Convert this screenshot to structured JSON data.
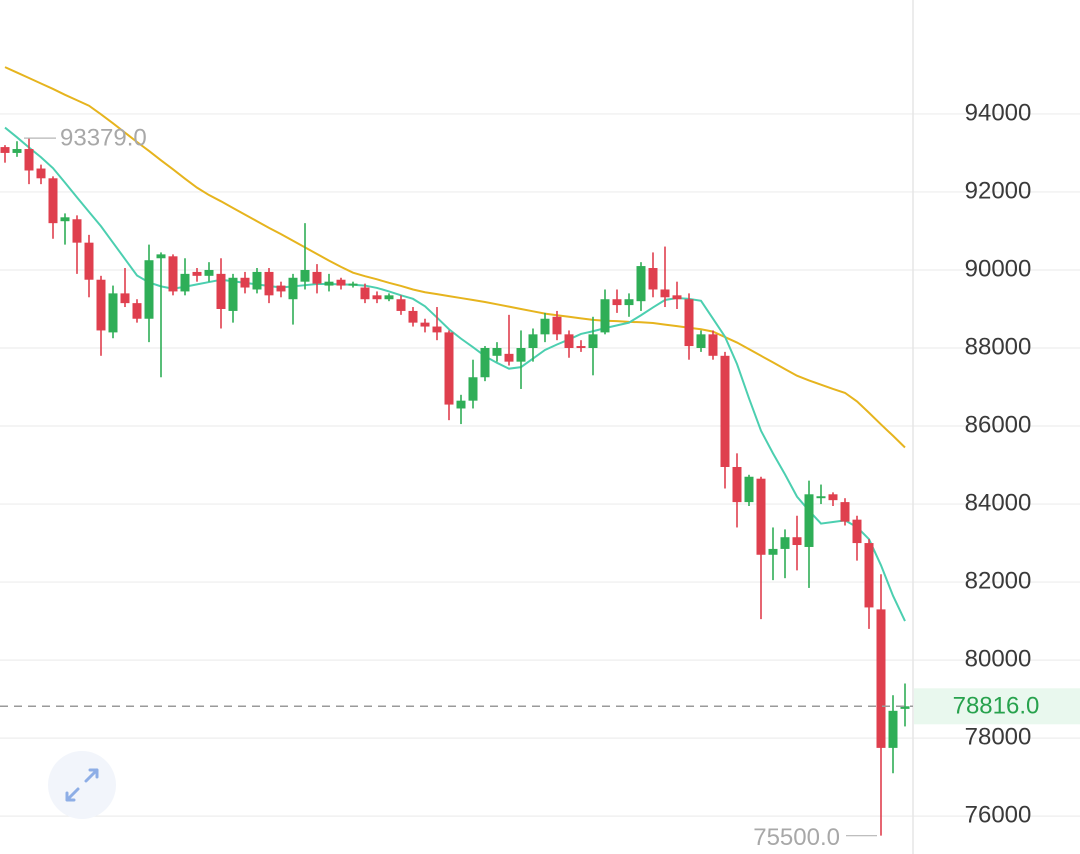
{
  "chart_data": {
    "type": "candlestick",
    "ylim": [
      75030,
      96920
    ],
    "yticks": [
      76000,
      78000,
      80000,
      82000,
      84000,
      86000,
      88000,
      90000,
      92000,
      94000
    ],
    "grid": true,
    "up_color": "#2fae57",
    "down_color": "#df3f4e",
    "candles": {
      "open": [
        93150,
        93000,
        93100,
        92600,
        92350,
        91250,
        91300,
        90700,
        89750,
        88400,
        89400,
        89150,
        88750,
        90300,
        90350,
        89450,
        89950,
        89850,
        89900,
        88950,
        89800,
        89500,
        89950,
        89600,
        89250,
        89700,
        89950,
        89600,
        89750,
        89600,
        89550,
        89350,
        89250,
        89250,
        88950,
        88650,
        88550,
        88400,
        86450,
        86650,
        87250,
        87800,
        87850,
        87650,
        88000,
        88350,
        88800,
        88350,
        88050,
        88000,
        88400,
        89250,
        89100,
        89200,
        90050,
        89500,
        89350,
        89250,
        88000,
        88350,
        87800,
        84950,
        84050,
        84650,
        82700,
        82850,
        83150,
        82900,
        84150,
        84250,
        84050,
        83600,
        83000,
        81300,
        77750,
        78750
      ],
      "high": [
        93200,
        93300,
        93379,
        92700,
        92400,
        91450,
        91400,
        90900,
        89850,
        89600,
        90050,
        89250,
        90650,
        90450,
        90400,
        90300,
        90050,
        90200,
        90300,
        89900,
        89950,
        90050,
        90050,
        89700,
        89900,
        91200,
        90150,
        89900,
        89800,
        89700,
        89650,
        89450,
        89400,
        89350,
        89050,
        88750,
        89050,
        88450,
        86800,
        87700,
        88050,
        88150,
        88850,
        88450,
        88500,
        88900,
        88950,
        88450,
        88200,
        88800,
        89500,
        89500,
        89400,
        90200,
        90450,
        90600,
        89700,
        89400,
        88450,
        88450,
        87900,
        85300,
        84750,
        84700,
        83400,
        83350,
        83700,
        84600,
        84500,
        84300,
        84150,
        83700,
        83100,
        82200,
        79100,
        79400
      ],
      "low": [
        92750,
        92900,
        92200,
        92200,
        90800,
        90650,
        89900,
        89300,
        87800,
        88250,
        89050,
        88650,
        88150,
        87250,
        89350,
        89350,
        89700,
        89700,
        88500,
        88650,
        89400,
        89400,
        89150,
        89300,
        88600,
        89500,
        89400,
        89450,
        89500,
        89550,
        89150,
        89150,
        89200,
        88850,
        88550,
        88400,
        88200,
        86150,
        86050,
        86450,
        87150,
        87650,
        87550,
        86950,
        87650,
        88150,
        88200,
        87750,
        87900,
        87300,
        88350,
        88900,
        88800,
        88950,
        89300,
        89050,
        89000,
        87700,
        87900,
        87700,
        84400,
        83400,
        83950,
        81050,
        82050,
        82100,
        82300,
        81850,
        84000,
        83950,
        83450,
        82550,
        80800,
        75500,
        77100,
        78300
      ],
      "close": [
        93000,
        93100,
        92550,
        92350,
        91200,
        91350,
        90700,
        89750,
        88450,
        89400,
        89150,
        88750,
        90250,
        90400,
        89450,
        89900,
        89850,
        90000,
        89000,
        89800,
        89550,
        89950,
        89350,
        89450,
        89800,
        90000,
        89650,
        89700,
        89600,
        89650,
        89250,
        89250,
        89350,
        88950,
        88650,
        88550,
        88400,
        86550,
        86650,
        87250,
        88000,
        88000,
        87650,
        88000,
        88350,
        88750,
        88350,
        88000,
        88000,
        88350,
        89250,
        89100,
        89250,
        90100,
        89500,
        89300,
        89250,
        88050,
        88350,
        87800,
        84950,
        84050,
        84700,
        82700,
        82850,
        83150,
        82950,
        84250,
        84200,
        84100,
        83550,
        83000,
        81350,
        77750,
        78700,
        78816
      ]
    },
    "ma_lines": [
      {
        "color": "#e6b41e",
        "values": [
          95200,
          95060,
          94920,
          94780,
          94640,
          94490,
          94350,
          94210,
          93990,
          93760,
          93520,
          93280,
          93050,
          92810,
          92580,
          92340,
          92110,
          91920,
          91760,
          91590,
          91420,
          91250,
          91080,
          90920,
          90750,
          90580,
          90410,
          90240,
          90080,
          89930,
          89840,
          89760,
          89670,
          89590,
          89500,
          89430,
          89380,
          89330,
          89280,
          89230,
          89180,
          89120,
          89060,
          89000,
          88940,
          88880,
          88840,
          88800,
          88760,
          88720,
          88700,
          88690,
          88670,
          88660,
          88640,
          88600,
          88560,
          88520,
          88480,
          88420,
          88280,
          88140,
          87970,
          87800,
          87630,
          87460,
          87290,
          87170,
          87060,
          86950,
          86850,
          86630,
          86340,
          86040,
          85750,
          85450
        ]
      },
      {
        "color": "#4ccfb0",
        "values": [
          93650,
          93400,
          93140,
          92890,
          92610,
          92240,
          91860,
          91490,
          91120,
          90700,
          90280,
          89860,
          89680,
          89580,
          89520,
          89570,
          89630,
          89690,
          89750,
          89710,
          89670,
          89630,
          89590,
          89550,
          89580,
          89610,
          89640,
          89640,
          89630,
          89620,
          89600,
          89540,
          89450,
          89350,
          89260,
          89070,
          88780,
          88480,
          88240,
          88020,
          87790,
          87620,
          87470,
          87510,
          87730,
          87950,
          88090,
          88220,
          88360,
          88430,
          88510,
          88580,
          88650,
          88840,
          89040,
          89230,
          89280,
          89260,
          89210,
          88750,
          88290,
          87590,
          86710,
          85880,
          85300,
          84760,
          84190,
          83830,
          83500,
          83540,
          83580,
          83410,
          83100,
          82430,
          81650,
          81000
        ]
      }
    ],
    "max_marker": {
      "value": 93379,
      "label": "93379.0"
    },
    "min_marker": {
      "value": 75500,
      "label": "75500.0"
    },
    "last_price": {
      "value": 78816,
      "label": "78816.0"
    }
  }
}
